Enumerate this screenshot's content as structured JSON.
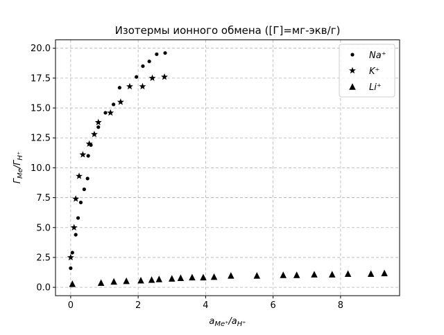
{
  "chart_data": {
    "type": "scatter",
    "title": "Изотермы ионного обмена ([Г]=мг-экв/г)",
    "xlabel": "a_{Me⁺}/a_{H⁺}",
    "ylabel": "Γ_{Me}/Γ_{H⁺}",
    "xlim": [
      -0.45,
      9.75
    ],
    "ylim": [
      -0.7,
      20.7
    ],
    "xticks": [
      0,
      2,
      4,
      6,
      8
    ],
    "yticks": [
      0.0,
      2.5,
      5.0,
      7.5,
      10.0,
      12.5,
      15.0,
      17.5,
      20.0
    ],
    "xtick_labels": [
      "0",
      "2",
      "4",
      "6",
      "8"
    ],
    "ytick_labels": [
      "0.0",
      "2.5",
      "5.0",
      "7.5",
      "10.0",
      "12.5",
      "15.0",
      "17.5",
      "20.0"
    ],
    "grid": true,
    "legend_position": "top-right",
    "series": [
      {
        "name": "Na⁺",
        "marker": "circle",
        "color": "#000000",
        "points": [
          [
            0.0,
            1.6
          ],
          [
            0.05,
            2.9
          ],
          [
            0.15,
            4.4
          ],
          [
            0.22,
            5.8
          ],
          [
            0.3,
            7.1
          ],
          [
            0.4,
            8.2
          ],
          [
            0.5,
            9.1
          ],
          [
            0.52,
            11.0
          ],
          [
            0.6,
            11.9
          ],
          [
            0.82,
            13.4
          ],
          [
            1.03,
            14.6
          ],
          [
            1.27,
            15.3
          ],
          [
            1.45,
            16.7
          ],
          [
            1.95,
            17.6
          ],
          [
            2.14,
            18.5
          ],
          [
            2.33,
            18.9
          ],
          [
            2.55,
            19.5
          ],
          [
            2.8,
            19.6
          ]
        ]
      },
      {
        "name": "K⁺",
        "marker": "star",
        "color": "#000000",
        "points": [
          [
            0.0,
            2.5
          ],
          [
            0.1,
            5.0
          ],
          [
            0.15,
            7.4
          ],
          [
            0.25,
            9.3
          ],
          [
            0.36,
            11.1
          ],
          [
            0.55,
            12.0
          ],
          [
            0.7,
            12.8
          ],
          [
            0.82,
            13.8
          ],
          [
            1.18,
            14.6
          ],
          [
            1.48,
            15.5
          ],
          [
            1.75,
            16.8
          ],
          [
            2.13,
            16.8
          ],
          [
            2.42,
            17.5
          ],
          [
            2.78,
            17.6
          ]
        ]
      },
      {
        "name": "Li⁺",
        "marker": "triangle",
        "color": "#000000",
        "points": [
          [
            0.05,
            0.3
          ],
          [
            0.9,
            0.4
          ],
          [
            1.28,
            0.5
          ],
          [
            1.65,
            0.55
          ],
          [
            2.08,
            0.6
          ],
          [
            2.4,
            0.65
          ],
          [
            2.62,
            0.7
          ],
          [
            3.0,
            0.75
          ],
          [
            3.26,
            0.8
          ],
          [
            3.6,
            0.85
          ],
          [
            3.93,
            0.85
          ],
          [
            4.25,
            0.9
          ],
          [
            4.75,
            1.0
          ],
          [
            5.52,
            1.0
          ],
          [
            6.3,
            1.05
          ],
          [
            6.7,
            1.05
          ],
          [
            7.22,
            1.1
          ],
          [
            7.75,
            1.1
          ],
          [
            8.22,
            1.15
          ],
          [
            8.9,
            1.15
          ],
          [
            9.3,
            1.2
          ]
        ]
      }
    ]
  }
}
